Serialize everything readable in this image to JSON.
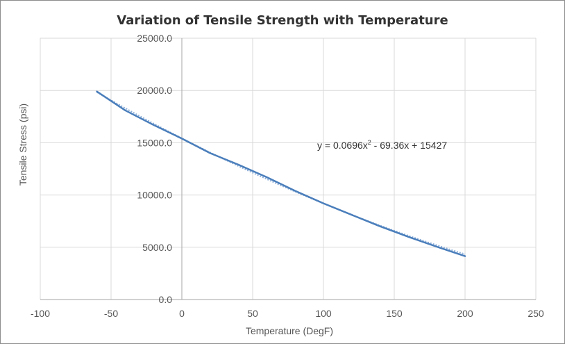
{
  "chart_data": {
    "type": "line",
    "title": "Variation of Tensile Strength with Temperature",
    "xlabel": "Temperature  (DegF)",
    "ylabel": "Tensile Stress (psi)",
    "xlim": [
      -100,
      250
    ],
    "ylim": [
      0,
      25000
    ],
    "x_ticks": [
      "-100",
      "-50",
      "0",
      "50",
      "100",
      "150",
      "200",
      "250"
    ],
    "y_ticks": [
      "0.0",
      "5000.0",
      "10000.0",
      "15000.0",
      "20000.0",
      "25000.0"
    ],
    "grid": true,
    "legend": "none",
    "series": [
      {
        "x": [
          -60,
          -40,
          -20,
          0,
          20,
          40,
          60,
          80,
          100,
          120,
          140,
          160,
          180,
          200
        ],
        "y": [
          19900,
          18100,
          16700,
          15400,
          14000,
          12900,
          11700,
          10400,
          9200,
          8100,
          7000,
          6000,
          5050,
          4150
        ],
        "color": "#4a7ebb"
      }
    ],
    "trendline": {
      "kind": "polynomial",
      "coefficients": [
        0.0696,
        -69.36,
        15427
      ],
      "x_range": [
        -60,
        200
      ],
      "color": "#4a7ebb",
      "equation_prefix": "y = 0.0696x",
      "equation_exponent": "2",
      "equation_suffix": " - 69.36x + 15427"
    }
  }
}
